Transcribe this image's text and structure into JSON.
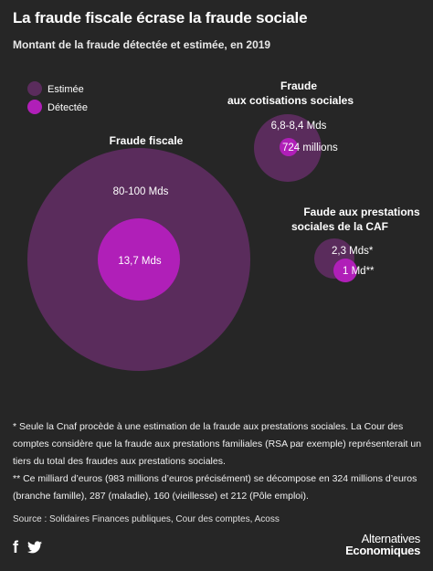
{
  "title": "La fraude fiscale écrase la fraude sociale",
  "subtitle": "Montant de la fraude détectée et estimée, en 2019",
  "colors": {
    "background": "#262626",
    "estimee": "#5a2c5c",
    "detectee": "#b01fb8",
    "text": "#ffffff"
  },
  "chart_data": {
    "type": "bubble",
    "legend": {
      "position": "top-left",
      "entries": [
        {
          "key": "estimee",
          "label": "Estimée"
        },
        {
          "key": "detectee",
          "label": "Détectée"
        }
      ]
    },
    "groups": [
      {
        "name": "Fraude fiscale",
        "estimee": {
          "label": "80-100 Mds",
          "value_bn_low": 80,
          "value_bn_high": 100
        },
        "detectee": {
          "label": "13,7 Mds",
          "value_bn": 13.7
        }
      },
      {
        "name_lines": [
          "Fraude",
          "aux cotisations sociales"
        ],
        "estimee": {
          "label": "6,8-8,4 Mds",
          "value_bn_low": 6.8,
          "value_bn_high": 8.4
        },
        "detectee": {
          "label": "724 millions",
          "value_bn": 0.724
        }
      },
      {
        "name_lines": [
          "Faude aux prestations",
          "sociales de la CAF"
        ],
        "estimee": {
          "label": "2,3 Mds*",
          "value_bn": 2.3
        },
        "detectee": {
          "label": "1 Md**",
          "value_bn": 1
        }
      }
    ]
  },
  "notes": {
    "note1": "* Seule la Cnaf procède à une estimation de la fraude aux prestations sociales. La Cour des comptes considère que la fraude aux prestations familiales (RSA par exemple) représenterait un tiers du total des fraudes aux prestations sociales.",
    "note2": "** Ce milliard d’euros (983 millions d’euros précisément) se décompose en 324 millions d’euros (branche famille), 287 (maladie), 160 (vieillesse) et 212 (Pôle emploi)."
  },
  "source": "Source : Solidaires Finances publiques, Cour des comptes, Acoss",
  "brand": {
    "line1": "Alternatives",
    "line2": "Economiques"
  },
  "social": {
    "facebook": "f",
    "twitter": "🐦"
  }
}
